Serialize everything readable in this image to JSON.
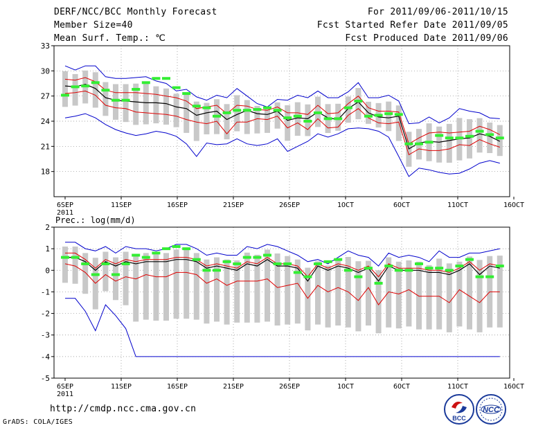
{
  "header": {
    "left": [
      "DERF/NCC/BCC Monthly Forecast",
      "Member Size=40",
      "Mean Surf. Temp.: ℃"
    ],
    "right": [
      "For 2011/09/06-2011/10/15",
      "Fcst Started Refer Date 2011/09/05",
      "Fcst Produced Date 2011/09/06"
    ]
  },
  "footer": {
    "url": "http://cmdp.ncc.cma.gov.cn",
    "credit": "GrADS: COLA/IGES",
    "logo_bcc": "BCC",
    "logo_ncc": "NCC"
  },
  "colors": {
    "envelope": "#0000cc",
    "spread": "#dd0000",
    "mean": "#000000",
    "observed": "#33ee33",
    "box": "#c8c8c8"
  },
  "chart_data": [
    {
      "type": "line",
      "title": "Mean Surf. Temp.: ℃",
      "x_range": [
        1,
        40
      ],
      "ylim": [
        15,
        33
      ],
      "yticks": [
        18,
        21,
        24,
        27,
        30,
        33
      ],
      "xtick_days": [
        1,
        6,
        11,
        16,
        21,
        26,
        31,
        36,
        41
      ],
      "xtick_labels": [
        "6SEP",
        "11SEP",
        "16SEP",
        "21SEP",
        "26SEP",
        "1OCT",
        "6OCT",
        "11OCT",
        "16OCT"
      ],
      "year_label": "2011",
      "series": [
        {
          "name": "max",
          "values": [
            30.6,
            30.1,
            30.6,
            30.6,
            29.3,
            29.1,
            29.1,
            29.2,
            29.3,
            28.8,
            28.5,
            27.6,
            27.8,
            26.9,
            26.5,
            27.1,
            26.8,
            27.9,
            27.0,
            26.1,
            25.7,
            26.6,
            26.5,
            27.1,
            26.8,
            27.6,
            26.8,
            26.8,
            27.5,
            28.6,
            26.8,
            26.8,
            27.1,
            26.4,
            23.7,
            23.8,
            24.5,
            23.8,
            24.4,
            25.5,
            25.2,
            25.0,
            24.4,
            24.3
          ]
        },
        {
          "name": "upper",
          "values": [
            29.0,
            28.9,
            29.2,
            28.7,
            27.7,
            27.4,
            27.4,
            27.4,
            27.3,
            27.2,
            27.0,
            26.8,
            26.4,
            25.5,
            25.7,
            25.9,
            24.9,
            25.9,
            25.8,
            25.4,
            25.3,
            25.7,
            25.0,
            25.0,
            24.8,
            25.9,
            24.9,
            25.0,
            26.1,
            27.0,
            25.6,
            25.2,
            25.2,
            25.1,
            21.3,
            22.0,
            22.6,
            22.7,
            22.6,
            22.7,
            22.8,
            23.4,
            23.0,
            22.4,
            22.1
          ]
        },
        {
          "name": "mean",
          "values": [
            28.2,
            28.1,
            28.4,
            27.9,
            26.8,
            26.5,
            26.4,
            26.3,
            26.2,
            26.2,
            26.1,
            25.7,
            25.5,
            24.7,
            25.0,
            25.2,
            24.2,
            24.8,
            25.3,
            24.9,
            24.8,
            25.2,
            24.1,
            24.4,
            24.3,
            25.1,
            24.4,
            24.2,
            25.5,
            26.3,
            25.0,
            24.5,
            24.4,
            24.6,
            20.7,
            21.4,
            21.6,
            21.5,
            21.7,
            21.9,
            22.0,
            22.5,
            22.2,
            21.6,
            21.5
          ]
        },
        {
          "name": "lower",
          "values": [
            27.3,
            27.4,
            27.6,
            27.1,
            25.9,
            25.6,
            25.5,
            25.1,
            25.0,
            24.9,
            24.8,
            24.6,
            24.2,
            23.9,
            23.7,
            24.0,
            22.5,
            23.9,
            23.9,
            24.3,
            24.2,
            24.6,
            23.2,
            23.8,
            23.0,
            24.3,
            23.2,
            23.3,
            24.7,
            25.5,
            24.4,
            23.8,
            23.7,
            23.9,
            20.0,
            20.7,
            20.5,
            20.5,
            20.7,
            21.2,
            21.1,
            21.8,
            21.3,
            20.9,
            20.7
          ]
        },
        {
          "name": "min",
          "values": [
            24.4,
            24.6,
            24.9,
            24.4,
            23.6,
            23.0,
            22.6,
            22.3,
            22.5,
            22.8,
            22.6,
            22.2,
            21.3,
            19.8,
            21.4,
            21.2,
            21.3,
            21.9,
            21.3,
            21.1,
            21.3,
            21.9,
            20.4,
            21.0,
            21.6,
            22.5,
            22.1,
            22.5,
            23.1,
            23.2,
            23.1,
            22.8,
            22.1,
            19.8,
            17.4,
            18.4,
            18.2,
            17.9,
            17.7,
            17.8,
            18.3,
            19.0,
            19.3,
            19.0,
            18.8
          ]
        },
        {
          "name": "observed",
          "values": [
            27.1,
            28.1,
            28.2,
            28.6,
            27.7,
            26.5,
            26.5,
            27.8,
            28.6,
            29.1,
            29.1,
            28.0,
            27.3,
            25.8,
            25.6,
            24.6,
            25.0,
            25.3,
            25.3,
            25.4,
            25.6,
            25.3,
            24.4,
            24.6,
            24.0,
            25.0,
            24.3,
            24.3,
            25.6,
            26.4,
            24.6,
            24.7,
            24.9,
            24.8,
            21.3,
            21.3,
            21.5,
            22.3,
            22.0,
            22.0,
            22.2,
            22.8,
            22.4,
            22.0,
            22.2
          ]
        }
      ]
    },
    {
      "type": "line",
      "title": "Prec.: log(mm/d)",
      "x_range": [
        1,
        40
      ],
      "ylim": [
        -5,
        2
      ],
      "yticks": [
        -5,
        -4,
        -3,
        -2,
        -1,
        0,
        1,
        2
      ],
      "xtick_days": [
        1,
        6,
        11,
        16,
        21,
        26,
        31,
        36,
        41
      ],
      "xtick_labels": [
        "6SEP",
        "11SEP",
        "16SEP",
        "21SEP",
        "26SEP",
        "1OCT",
        "6OCT",
        "11OCT",
        "16OCT"
      ],
      "year_label": "2011",
      "series": [
        {
          "name": "max",
          "values": [
            1.3,
            1.3,
            1.0,
            0.9,
            1.1,
            0.8,
            1.1,
            1.0,
            1.0,
            0.9,
            1.0,
            1.2,
            1.2,
            1.0,
            0.7,
            0.8,
            0.7,
            0.7,
            1.1,
            1.0,
            1.2,
            1.1,
            0.9,
            0.7,
            0.4,
            0.5,
            0.3,
            0.6,
            0.9,
            0.7,
            0.6,
            0.2,
            0.8,
            0.6,
            0.7,
            0.6,
            0.4,
            0.9,
            0.6,
            0.6,
            0.8,
            0.8,
            0.9,
            1.0,
            1.0
          ]
        },
        {
          "name": "upper",
          "values": [
            0.8,
            0.8,
            0.5,
            0.1,
            0.5,
            0.3,
            0.5,
            0.4,
            0.5,
            0.5,
            0.5,
            0.6,
            0.6,
            0.5,
            0.2,
            0.3,
            0.2,
            0.1,
            0.4,
            0.3,
            0.6,
            0.3,
            0.3,
            0.2,
            -0.3,
            0.3,
            0.1,
            0.3,
            0.2,
            0.0,
            0.2,
            -0.3,
            0.3,
            0.1,
            0.1,
            0.1,
            0.0,
            0.0,
            -0.1,
            0.1,
            0.4,
            0.0,
            0.3,
            0.2,
            0.3
          ]
        },
        {
          "name": "mean",
          "values": [
            0.6,
            0.6,
            0.4,
            0.0,
            0.4,
            0.2,
            0.4,
            0.3,
            0.4,
            0.4,
            0.4,
            0.5,
            0.5,
            0.4,
            0.1,
            0.2,
            0.1,
            0.0,
            0.3,
            0.2,
            0.5,
            0.2,
            0.2,
            0.1,
            -0.5,
            0.2,
            0.0,
            0.2,
            0.1,
            -0.1,
            0.1,
            -0.5,
            0.2,
            0.0,
            0.0,
            0.0,
            -0.1,
            -0.1,
            -0.2,
            0.0,
            0.3,
            -0.2,
            0.2,
            0.1,
            0.2
          ]
        },
        {
          "name": "lower",
          "values": [
            0.3,
            0.2,
            -0.1,
            -0.6,
            -0.2,
            -0.5,
            -0.3,
            -0.4,
            -0.2,
            -0.3,
            -0.3,
            -0.1,
            -0.1,
            -0.2,
            -0.6,
            -0.4,
            -0.7,
            -0.5,
            -0.5,
            -0.5,
            -0.4,
            -0.8,
            -0.7,
            -0.6,
            -1.3,
            -0.7,
            -1.0,
            -0.8,
            -1.0,
            -1.4,
            -0.8,
            -1.6,
            -1.0,
            -1.1,
            -0.9,
            -1.2,
            -1.2,
            -1.2,
            -1.5,
            -0.9,
            -1.2,
            -1.5,
            -1.0,
            -1.0,
            -1.0
          ]
        },
        {
          "name": "min",
          "values": [
            -1.3,
            -1.3,
            -1.9,
            -2.8,
            -1.6,
            -2.1,
            -2.7,
            -4.0,
            -4.0,
            -4.0,
            -4.0,
            -4.0,
            -4.0,
            -4.0,
            -4.0,
            -4.0,
            -4.0,
            -4.0,
            -4.0,
            -4.0,
            -4.0,
            -4.0,
            -4.0,
            -4.0,
            -4.0,
            -4.0,
            -4.0,
            -4.0,
            -4.0,
            -4.0,
            -4.0,
            -4.0,
            -4.0,
            -4.0,
            -4.0,
            -4.0,
            -4.0,
            -4.0,
            -4.0,
            -4.0,
            -4.0,
            -4.0,
            -4.0,
            -4.0,
            -4.0
          ]
        },
        {
          "name": "observed",
          "values": [
            0.6,
            0.6,
            0.3,
            -0.2,
            0.3,
            -0.2,
            0.3,
            0.7,
            0.6,
            0.8,
            1.0,
            1.1,
            1.0,
            0.5,
            0.0,
            0.0,
            0.4,
            0.3,
            0.6,
            0.6,
            0.7,
            0.3,
            0.3,
            -0.1,
            -0.3,
            0.3,
            0.4,
            0.5,
            0.0,
            -0.3,
            0.1,
            -0.6,
            0.2,
            0.0,
            0.0,
            0.3,
            0.1,
            0.1,
            0.0,
            0.2,
            0.5,
            -0.3,
            -0.3,
            0.2,
            0.4
          ]
        }
      ]
    }
  ]
}
